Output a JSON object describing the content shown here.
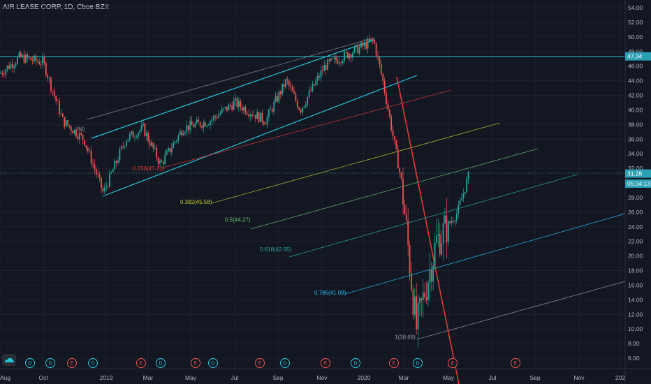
{
  "header": {
    "title": "AIR LEASE CORP, 1D, Cboe BZX"
  },
  "colors": {
    "background": "#131722",
    "grid": "#1e222d",
    "axis_text": "#b2b5be",
    "candle_up": "#26a69a",
    "candle_down": "#ef5350",
    "channel": "#26c6da",
    "trend_red": "#e53935"
  },
  "price_tags": [
    {
      "name": "horizontal-level",
      "value": "47.34",
      "price": 47.34,
      "bg": "#2b9fb3"
    },
    {
      "name": "last-price",
      "value": "31.28",
      "price": 31.28,
      "bg": "#2b9fb3"
    },
    {
      "name": "countdown",
      "value": "05:34:13",
      "price": 29.9,
      "bg": "#2b9fb3"
    }
  ],
  "fib_levels": [
    {
      "label": "0.236(47.21)",
      "color": "#e53935",
      "price": 32.0
    },
    {
      "label": "0.382(45.58)",
      "color": "#c0ca33",
      "price": 27.4
    },
    {
      "label": "0.5(44.27)",
      "color": "#66bb6a",
      "price": 25.0
    },
    {
      "label": "0.618(42.95)",
      "color": "#26a69a",
      "price": 20.9
    },
    {
      "label": "0.786(41.08)",
      "color": "#29b6f6",
      "price": 15.0
    },
    {
      "label": "1(38.69)",
      "color": "#9598a1",
      "price": 8.9
    },
    {
      "label": "84)",
      "color": "#9598a1",
      "price": 37.4
    }
  ],
  "events": [
    {
      "type": "D",
      "x": 43
    },
    {
      "type": "D",
      "x": 72
    },
    {
      "type": "E",
      "x": 103
    },
    {
      "type": "D",
      "x": 133
    },
    {
      "type": "E",
      "x": 202
    },
    {
      "type": "D",
      "x": 230
    },
    {
      "type": "E",
      "x": 280
    },
    {
      "type": "D",
      "x": 305
    },
    {
      "type": "E",
      "x": 372
    },
    {
      "type": "D",
      "x": 408
    },
    {
      "type": "E",
      "x": 466
    },
    {
      "type": "D",
      "x": 509
    },
    {
      "type": "E",
      "x": 564
    },
    {
      "type": "D",
      "x": 598
    },
    {
      "type": "E",
      "x": 648
    },
    {
      "type": "E",
      "x": 738
    }
  ],
  "chart_data": {
    "type": "candlestick",
    "title": "AIR LEASE CORP, 1D, Cboe BZX",
    "y_range": [
      4.4,
      55.6
    ],
    "y_ticks": [
      "54.00",
      "52.00",
      "50.00",
      "48.00",
      "46.00",
      "44.00",
      "42.00",
      "40.00",
      "38.00",
      "36.00",
      "34.00",
      "32.00",
      "30.00",
      "28.00",
      "26.00",
      "24.00",
      "22.00",
      "20.00",
      "18.00",
      "16.00",
      "14.00",
      "12.00",
      "10.00",
      "8.00",
      "6.00"
    ],
    "x_ticks": [
      "Aug",
      "Oct",
      "2019",
      "Mar",
      "May",
      "Jul",
      "Sep",
      "Nov",
      "2020",
      "Mar",
      "May",
      "Jul",
      "Sep",
      "Nov",
      "202"
    ],
    "price_path": [
      [
        "2018-08",
        45.0
      ],
      [
        "2018-09",
        47.2
      ],
      [
        "2018-10",
        46.5
      ],
      [
        "2018-11",
        38.5
      ],
      [
        "2018-12",
        36.0
      ],
      [
        "2019-01",
        28.6
      ],
      [
        "2019-02",
        36.0
      ],
      [
        "2019-03",
        37.5
      ],
      [
        "2019-04",
        32.5
      ],
      [
        "2019-05",
        37.5
      ],
      [
        "2019-06",
        38.5
      ],
      [
        "2019-07",
        41.0
      ],
      [
        "2019-08",
        38.5
      ],
      [
        "2019-09",
        44.0
      ],
      [
        "2019-10",
        40.0
      ],
      [
        "2019-11",
        46.0
      ],
      [
        "2019-12",
        47.5
      ],
      [
        "2020-01",
        49.5
      ],
      [
        "2020-02",
        44.0
      ],
      [
        "2020-03",
        30.0
      ],
      [
        "2020-03b",
        10.0
      ],
      [
        "2020-04",
        22.0
      ],
      [
        "2020-05",
        26.0
      ],
      [
        "2020-06",
        31.28
      ]
    ]
  }
}
